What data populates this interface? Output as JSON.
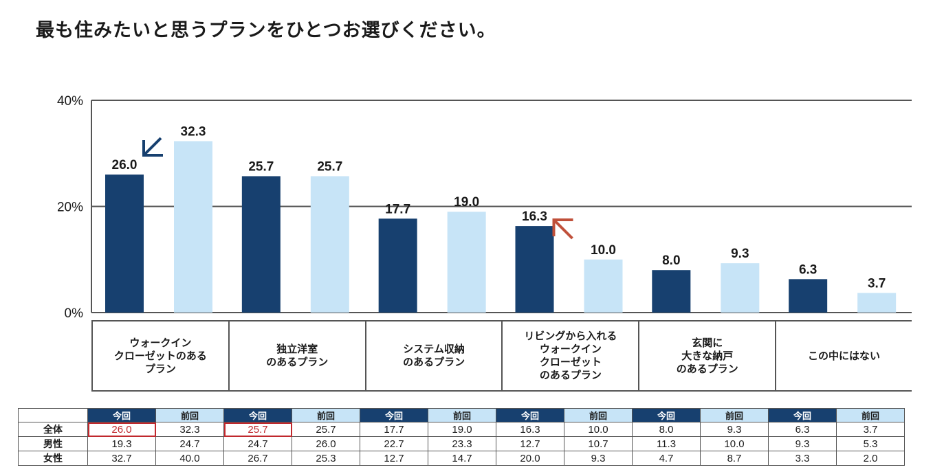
{
  "title": "最も住みたいと思うプランをひとつお選びください。",
  "colors": {
    "current": "#17406f",
    "previous": "#c7e4f7",
    "arrow_down": "#17406f",
    "arrow_up": "#c0503a",
    "highlight": "#c0282d"
  },
  "chart_data": {
    "type": "bar",
    "title": "最も住みたいと思うプランをひとつお選びください。",
    "xlabel": "",
    "ylabel": "",
    "ylim": [
      0,
      40
    ],
    "yticks": [
      0,
      20,
      40
    ],
    "ytick_labels": [
      "0%",
      "20%",
      "40%"
    ],
    "grid": true,
    "categories": [
      "ウォークイン\nクローゼットのある\nプラン",
      "独立洋室\nのあるプラン",
      "システム収納\nのあるプラン",
      "リビングから入れる\nウォークイン\nクローゼット\nのあるプラン",
      "玄関に\n大きな納戸\nのあるプラン",
      "この中にはない"
    ],
    "series": [
      {
        "name": "今回",
        "values": [
          26.0,
          25.7,
          17.7,
          16.3,
          8.0,
          6.3
        ]
      },
      {
        "name": "前回",
        "values": [
          32.3,
          25.7,
          19.0,
          10.0,
          9.3,
          3.7
        ]
      }
    ],
    "data_labels": [
      [
        "26.0",
        "25.7",
        "17.7",
        "16.3",
        "8.0",
        "6.3"
      ],
      [
        "32.3",
        "25.7",
        "19.0",
        "10.0",
        "9.3",
        "3.7"
      ]
    ],
    "annotations": [
      {
        "type": "arrow",
        "direction": "down-left",
        "category_index": 0,
        "meaning": "decrease"
      },
      {
        "type": "arrow",
        "direction": "up-left",
        "category_index": 3,
        "meaning": "increase"
      }
    ]
  },
  "table": {
    "col_headers": [
      "今回",
      "前回",
      "今回",
      "前回",
      "今回",
      "前回",
      "今回",
      "前回",
      "今回",
      "前回",
      "今回",
      "前回"
    ],
    "rows": [
      {
        "label": "全体",
        "values": [
          "26.0",
          "32.3",
          "25.7",
          "25.7",
          "17.7",
          "19.0",
          "16.3",
          "10.0",
          "8.0",
          "9.3",
          "6.3",
          "3.7"
        ],
        "highlight": [
          0,
          2
        ]
      },
      {
        "label": "男性",
        "values": [
          "19.3",
          "24.7",
          "24.7",
          "26.0",
          "22.7",
          "23.3",
          "12.7",
          "10.7",
          "11.3",
          "10.0",
          "9.3",
          "5.3"
        ],
        "highlight": []
      },
      {
        "label": "女性",
        "values": [
          "32.7",
          "40.0",
          "26.7",
          "25.3",
          "12.7",
          "14.7",
          "20.0",
          "9.3",
          "4.7",
          "8.7",
          "3.3",
          "2.0"
        ],
        "highlight": []
      }
    ]
  }
}
